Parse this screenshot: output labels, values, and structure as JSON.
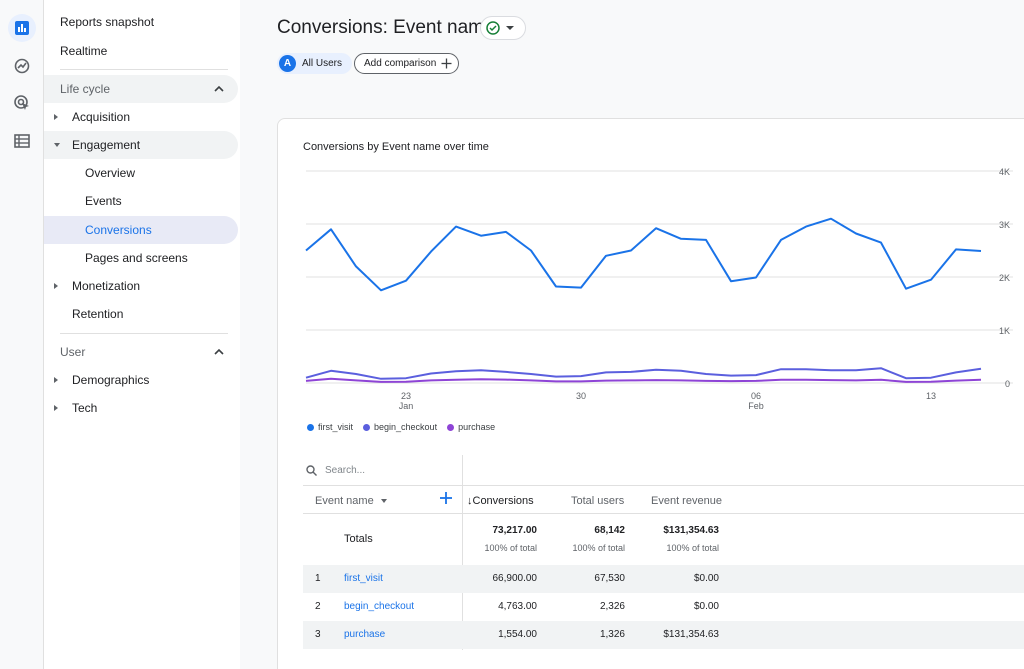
{
  "rail": {
    "items": [
      {
        "icon": "bar-chart-icon",
        "active": true
      },
      {
        "icon": "trend-icon",
        "active": false
      },
      {
        "icon": "target-cursor-icon",
        "active": false
      },
      {
        "icon": "list-icon",
        "active": false
      }
    ]
  },
  "sidebar": {
    "reports_snapshot": "Reports snapshot",
    "realtime": "Realtime",
    "lifecycle": "Life cycle",
    "acquisition": "Acquisition",
    "engagement": "Engagement",
    "overview": "Overview",
    "events": "Events",
    "conversions": "Conversions",
    "pages_and_screens": "Pages and screens",
    "monetization": "Monetization",
    "retention": "Retention",
    "user": "User",
    "demographics": "Demographics",
    "tech": "Tech"
  },
  "header": {
    "title": "Conversions: Event name",
    "all_users_badge": "A",
    "all_users": "All Users",
    "add_comparison": "Add comparison"
  },
  "chart_data": {
    "type": "line",
    "title": "Conversions by Event name over time",
    "x_tick_labels": [
      {
        "day": "23",
        "month": "Jan"
      },
      {
        "day": "30",
        "month": ""
      },
      {
        "day": "06",
        "month": "Feb"
      },
      {
        "day": "13",
        "month": ""
      }
    ],
    "y_tick_labels": [
      "4K",
      "3K",
      "2K",
      "1K",
      "0"
    ],
    "ylim": [
      0,
      4000
    ],
    "grid": true,
    "y_axis_side": "right",
    "legend_position": "bottom-left",
    "series": [
      {
        "name": "first_visit",
        "color": "#1a73e8",
        "values": [
          2500,
          2900,
          2200,
          1750,
          1930,
          2480,
          2950,
          2780,
          2850,
          2500,
          1820,
          1800,
          2400,
          2500,
          2920,
          2720,
          2700,
          1920,
          1990,
          2700,
          2950,
          3100,
          2820,
          2650,
          1780,
          1950,
          2520,
          2490
        ]
      },
      {
        "name": "begin_checkout",
        "color": "#5b5fde",
        "values": [
          100,
          230,
          170,
          80,
          90,
          180,
          220,
          240,
          210,
          170,
          120,
          130,
          200,
          210,
          250,
          230,
          170,
          140,
          150,
          260,
          260,
          240,
          240,
          280,
          90,
          100,
          200,
          270
        ]
      },
      {
        "name": "purchase",
        "color": "#8e44d6",
        "values": [
          40,
          80,
          50,
          20,
          25,
          50,
          60,
          70,
          65,
          50,
          30,
          30,
          45,
          50,
          55,
          50,
          40,
          35,
          40,
          60,
          60,
          55,
          50,
          60,
          20,
          25,
          45,
          60
        ]
      }
    ]
  },
  "table": {
    "search_placeholder": "Search...",
    "columns": {
      "event_name": "Event name",
      "conversions": "Conversions",
      "total_users": "Total users",
      "event_revenue": "Event revenue"
    },
    "totals": {
      "label": "Totals",
      "conversions": "73,217.00",
      "conversions_pct": "100% of total",
      "total_users": "68,142",
      "total_users_pct": "100% of total",
      "event_revenue": "$131,354.63",
      "event_revenue_pct": "100% of total"
    },
    "rows": [
      {
        "index": "1",
        "name": "first_visit",
        "conversions": "66,900.00",
        "total_users": "67,530",
        "event_revenue": "$0.00"
      },
      {
        "index": "2",
        "name": "begin_checkout",
        "conversions": "4,763.00",
        "total_users": "2,326",
        "event_revenue": "$0.00"
      },
      {
        "index": "3",
        "name": "purchase",
        "conversions": "1,554.00",
        "total_users": "1,326",
        "event_revenue": "$131,354.63"
      }
    ]
  }
}
